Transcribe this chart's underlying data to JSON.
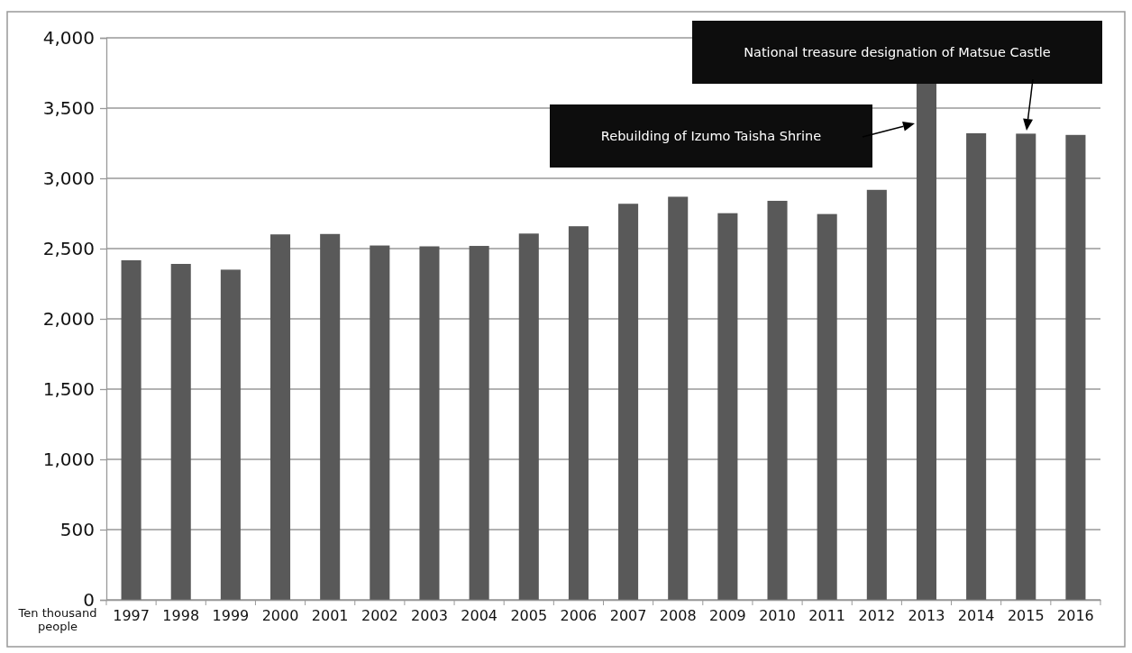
{
  "chart_data": {
    "type": "bar",
    "ylabel": "Ten thousand people",
    "categories": [
      "1997",
      "1998",
      "1999",
      "2000",
      "2001",
      "2002",
      "2003",
      "2004",
      "2005",
      "2006",
      "2007",
      "2008",
      "2009",
      "2010",
      "2011",
      "2012",
      "2013",
      "2014",
      "2015",
      "2016"
    ],
    "values": [
      2417,
      2391,
      2350,
      2601,
      2604,
      2522,
      2516,
      2519,
      2607,
      2659,
      2819,
      2869,
      2752,
      2840,
      2746,
      2918,
      3680,
      3321,
      3318,
      3309
    ],
    "color": "#595959",
    "ylim": [
      0,
      4000
    ],
    "yticks": [
      {
        "value": 0,
        "label": "0"
      },
      {
        "value": 500,
        "label": "500"
      },
      {
        "value": 1000,
        "label": "1,000"
      },
      {
        "value": 1500,
        "label": "1,500"
      },
      {
        "value": 2000,
        "label": "2,000"
      },
      {
        "value": 2500,
        "label": "2,500"
      },
      {
        "value": 3000,
        "label": "3,000"
      },
      {
        "value": 3500,
        "label": "3,500"
      },
      {
        "value": 4000,
        "label": "4,000"
      }
    ],
    "grid": "y",
    "annotations": [
      "Rebuilding of Izumo Taisha Shrine",
      "National treasure designation of Matsue Castle"
    ]
  }
}
